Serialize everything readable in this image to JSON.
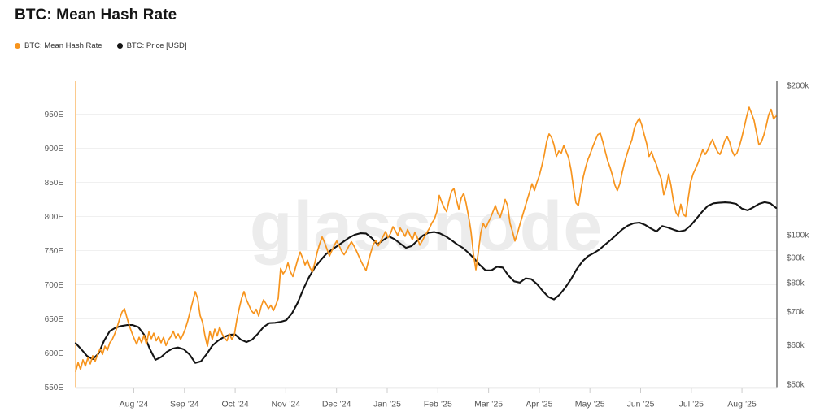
{
  "header": {
    "title": "BTC: Mean Hash Rate"
  },
  "legend": [
    {
      "label": "BTC: Mean Hash Rate",
      "color": "#f7941d"
    },
    {
      "label": "BTC: Price [USD]",
      "color": "#141414"
    }
  ],
  "watermark": "glassnode",
  "chart_data": {
    "type": "line",
    "title": "BTC: Mean Hash Rate",
    "grid": "horizontal",
    "legend_position": "top-left",
    "x_axis": {
      "ticks": [
        {
          "label": "Aug ’24",
          "f": 0.0829
        },
        {
          "label": "Sep ’24",
          "f": 0.1552
        },
        {
          "label": "Oct ’24",
          "f": 0.2275
        },
        {
          "label": "Nov ’24",
          "f": 0.2997
        },
        {
          "label": "Dec ’24",
          "f": 0.372
        },
        {
          "label": "Jan ’25",
          "f": 0.4443
        },
        {
          "label": "Feb ’25",
          "f": 0.5166
        },
        {
          "label": "Mar ’25",
          "f": 0.5889
        },
        {
          "label": "Apr ’25",
          "f": 0.6611
        },
        {
          "label": "May ’25",
          "f": 0.7334
        },
        {
          "label": "Jun ’25",
          "f": 0.8057
        },
        {
          "label": "Jul ’25",
          "f": 0.878
        },
        {
          "label": "Aug ’25",
          "f": 0.9502
        }
      ]
    },
    "y_left": {
      "series": "BTC: Mean Hash Rate",
      "scale": "linear",
      "unit_suffix": "E",
      "ticks": [
        550,
        600,
        650,
        700,
        750,
        800,
        850,
        900,
        950
      ],
      "ylim": [
        550,
        998
      ]
    },
    "y_right": {
      "series": "BTC: Price [USD]",
      "scale": "log",
      "unit_prefix": "$",
      "unit_suffix": "k",
      "ticks": [
        200,
        100,
        90,
        80,
        70,
        60,
        50
      ],
      "ylim_k": [
        50,
        204
      ]
    },
    "series": [
      {
        "id": "btc-price-usd",
        "name": "BTC: Price [USD]",
        "color": "#141414",
        "axis": "right",
        "stroke_width": 2.1,
        "values_unit": "thousand USD",
        "x0": 0,
        "dx": 0.008121,
        "values": [
          60.5,
          58.8,
          57.0,
          56.2,
          57.6,
          61.2,
          64.0,
          65.0,
          65.5,
          65.8,
          65.8,
          65.2,
          63.0,
          59.0,
          56.0,
          56.7,
          58.1,
          59.0,
          59.3,
          58.8,
          57.4,
          55.2,
          55.6,
          57.5,
          59.8,
          61.2,
          62.2,
          62.9,
          63.0,
          61.5,
          60.8,
          61.5,
          63.2,
          65.2,
          66.4,
          66.5,
          66.8,
          67.3,
          69.5,
          73.0,
          77.8,
          82.2,
          85.9,
          88.8,
          91.5,
          93.3,
          95.0,
          96.8,
          98.6,
          100.0,
          100.7,
          100.6,
          98.5,
          95.7,
          97.5,
          99.3,
          98.0,
          96.0,
          94.1,
          94.9,
          97.3,
          99.7,
          101.0,
          101.3,
          100.6,
          99.3,
          97.5,
          95.6,
          94.1,
          91.9,
          89.5,
          86.9,
          84.8,
          84.8,
          86.2,
          85.9,
          82.8,
          80.6,
          80.1,
          81.7,
          81.4,
          79.6,
          77.1,
          75.0,
          74.1,
          75.8,
          78.3,
          81.4,
          85.3,
          88.4,
          90.6,
          91.9,
          93.4,
          95.6,
          97.7,
          100.1,
          102.5,
          104.4,
          105.5,
          105.8,
          104.7,
          103.0,
          101.5,
          104.1,
          103.4,
          102.4,
          101.5,
          102.1,
          104.4,
          107.7,
          111.2,
          114.3,
          115.7,
          116.0,
          116.2,
          116.0,
          115.4,
          112.9,
          112.0,
          113.6,
          115.4,
          116.3,
          115.7,
          113.3
        ]
      },
      {
        "id": "btc-mean-hash-rate",
        "name": "BTC: Mean Hash Rate",
        "color": "#f7941d",
        "axis": "left",
        "stroke_width": 1.7,
        "values_unit": "E",
        "x0": 0,
        "dx": 0.00348,
        "values": [
          573,
          586,
          576,
          590,
          581,
          593,
          584,
          596,
          588,
          598,
          606,
          598,
          610,
          604,
          615,
          620,
          628,
          638,
          650,
          660,
          665,
          652,
          640,
          630,
          621,
          613,
          623,
          615,
          626,
          613,
          631,
          621,
          629,
          618,
          624,
          615,
          623,
          611,
          619,
          624,
          632,
          622,
          628,
          620,
          627,
          636,
          648,
          662,
          676,
          690,
          680,
          655,
          645,
          625,
          610,
          632,
          620,
          635,
          625,
          638,
          628,
          622,
          618,
          628,
          620,
          626,
          648,
          665,
          680,
          690,
          678,
          670,
          662,
          658,
          664,
          654,
          668,
          678,
          672,
          665,
          670,
          662,
          670,
          680,
          724,
          716,
          721,
          732,
          719,
          712,
          724,
          737,
          748,
          739,
          729,
          736,
          725,
          719,
          732,
          748,
          760,
          770,
          762,
          752,
          742,
          750,
          758,
          764,
          757,
          749,
          744,
          750,
          757,
          763,
          757,
          750,
          742,
          734,
          727,
          721,
          735,
          748,
          759,
          765,
          757,
          764,
          771,
          778,
          769,
          775,
          785,
          779,
          772,
          783,
          777,
          771,
          781,
          773,
          766,
          777,
          769,
          758,
          764,
          771,
          777,
          783,
          791,
          796,
          807,
          831,
          821,
          813,
          807,
          823,
          837,
          841,
          825,
          811,
          827,
          834,
          819,
          800,
          778,
          745,
          722,
          748,
          776,
          790,
          783,
          791,
          798,
          807,
          816,
          805,
          799,
          811,
          825,
          816,
          790,
          778,
          764,
          775,
          788,
          800,
          812,
          824,
          836,
          848,
          838,
          850,
          860,
          874,
          890,
          910,
          921,
          916,
          905,
          888,
          896,
          893,
          904,
          895,
          886,
          868,
          842,
          820,
          816,
          838,
          858,
          872,
          884,
          893,
          903,
          912,
          920,
          922,
          910,
          896,
          882,
          872,
          860,
          846,
          838,
          848,
          865,
          880,
          892,
          903,
          913,
          930,
          938,
          944,
          934,
          920,
          907,
          888,
          895,
          884,
          876,
          864,
          855,
          832,
          843,
          862,
          845,
          822,
          806,
          800,
          818,
          803,
          800,
          826,
          850,
          862,
          870,
          878,
          888,
          898,
          891,
          897,
          906,
          913,
          903,
          895,
          891,
          899,
          911,
          917,
          909,
          896,
          889,
          893,
          903,
          916,
          931,
          947,
          960,
          951,
          941,
          923,
          905,
          909,
          919,
          933,
          949,
          957,
          943,
          947
        ]
      }
    ]
  }
}
